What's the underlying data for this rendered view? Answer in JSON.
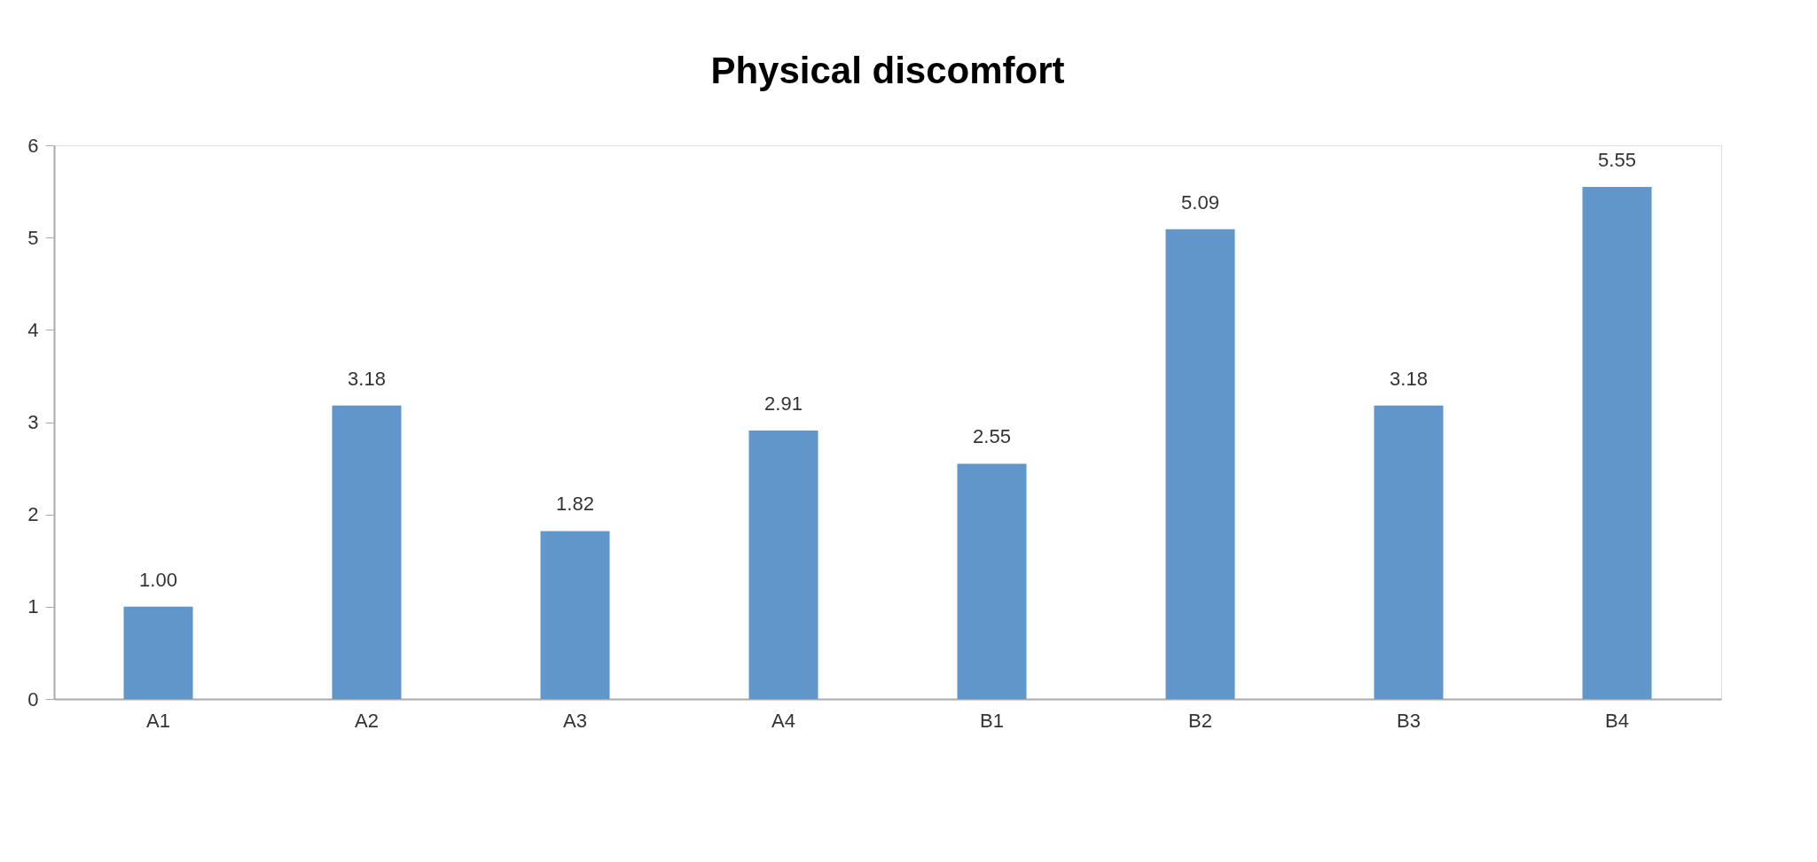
{
  "chart_data": {
    "type": "bar",
    "title": "Physical discomfort",
    "categories": [
      "A1",
      "A2",
      "A3",
      "A4",
      "B1",
      "B2",
      "B3",
      "B4"
    ],
    "values": [
      1.0,
      3.18,
      1.82,
      2.91,
      2.55,
      5.09,
      3.18,
      5.55
    ],
    "value_labels": [
      "1.00",
      "3.18",
      "1.82",
      "2.91",
      "2.55",
      "5.09",
      "3.18",
      "5.55"
    ],
    "color": "#6096c9",
    "ylim": [
      0,
      6
    ],
    "yticks": [
      0,
      1,
      2,
      3,
      4,
      5,
      6
    ],
    "grid": false
  }
}
